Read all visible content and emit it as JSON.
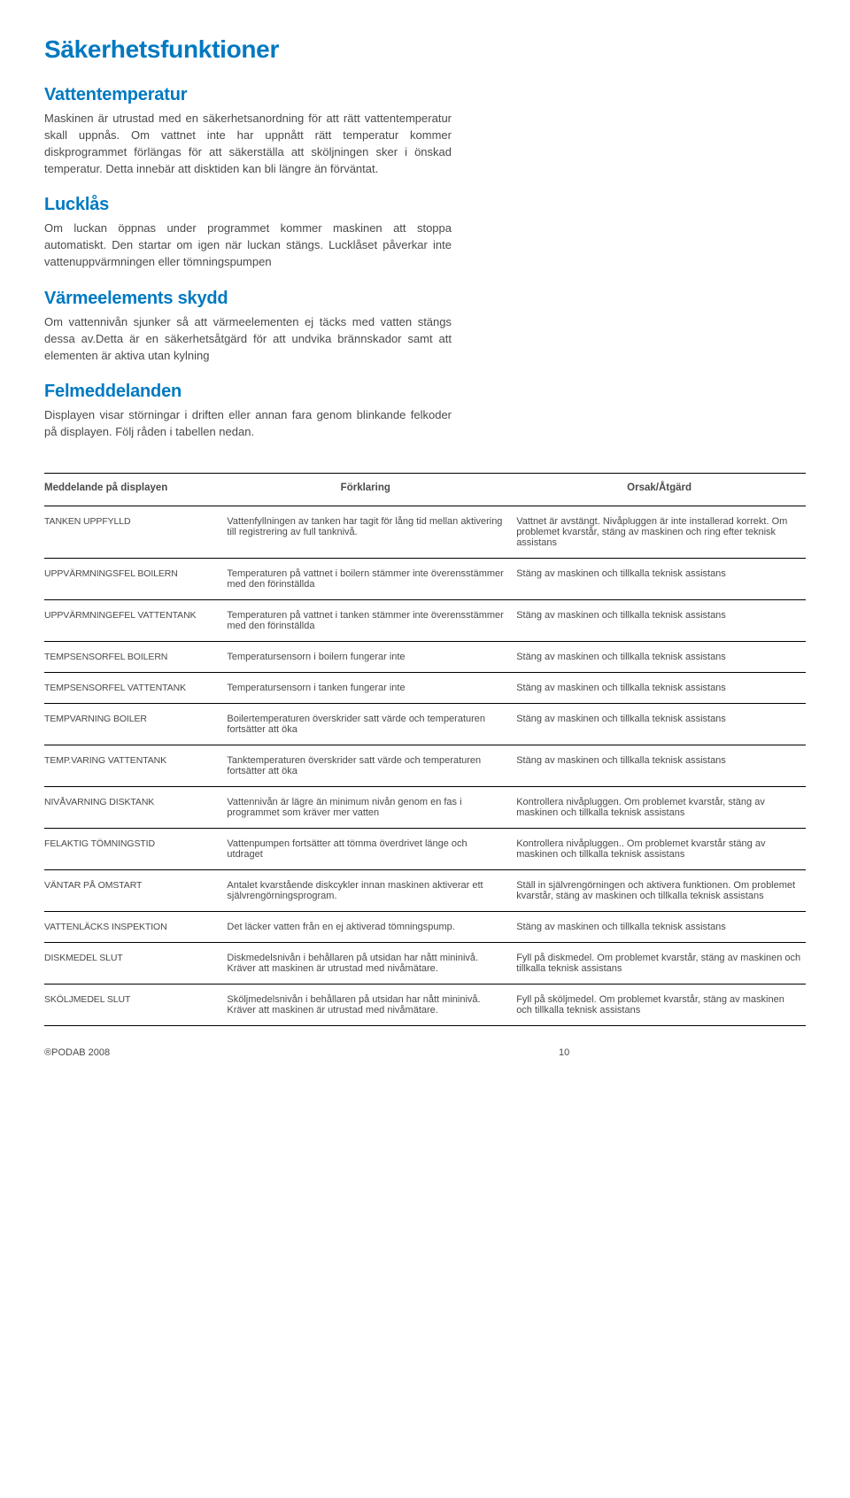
{
  "h1": "Säkerhetsfunktioner",
  "sections": [
    {
      "title": "Vattentemperatur",
      "paras": [
        "Maskinen är utrustad med en säkerhetsanordning för att rätt vattentemperatur skall uppnås. Om vattnet inte har uppnått rätt temperatur kommer diskprogrammet förlängas för att säkerställa att sköljningen sker i önskad temperatur. Detta innebär att disktiden kan bli längre än förväntat."
      ]
    },
    {
      "title": "Lucklås",
      "paras": [
        "Om luckan öppnas under programmet kommer maskinen att stoppa automatiskt. Den startar om igen när luckan stängs. Lucklåset påverkar inte vattenuppvärmningen eller tömningspumpen"
      ]
    },
    {
      "title": "Värmeelements skydd",
      "paras": [
        "Om vattennivån sjunker så att värmeelementen ej täcks med vatten stängs dessa av.Detta är en säkerhetsåtgärd för att undvika brännskador samt att elementen är aktiva utan kylning"
      ]
    },
    {
      "title": "Felmeddelanden",
      "paras": [
        "Displayen visar störningar i driften eller annan fara genom blinkande felkoder på displayen. Följ råden i tabellen  nedan."
      ]
    }
  ],
  "table": {
    "headers": [
      "Meddelande på displayen",
      "Förklaring",
      "Orsak/Åtgärd"
    ],
    "rows": [
      [
        "TANKEN UPPFYLLD",
        "Vattenfyllningen av tanken har tagit för lång tid mellan aktivering till registrering av full tanknivå.",
        "Vattnet är avstängt. Nivåpluggen är inte installerad korrekt. Om problemet kvarstår, stäng av maskinen och ring efter teknisk assistans"
      ],
      [
        "UPPVÄRMNINGSFEL BOILERN",
        "Temperaturen på vattnet i boilern stämmer inte överensstämmer med den förinställda",
        "Stäng av maskinen och tillkalla teknisk assistans"
      ],
      [
        "UPPVÄRMNINGEFEL VATTENTANK",
        "Temperaturen på vattnet i tanken stämmer inte överensstämmer med den förinställda",
        "Stäng av maskinen och tillkalla teknisk assistans"
      ],
      [
        "TEMPSENSORFEL  BOILERN",
        "Temperatursensorn i boilern fungerar inte",
        "Stäng av maskinen och tillkalla teknisk assistans"
      ],
      [
        "TEMPSENSORFEL VATTENTANK",
        "Temperatursensorn i tanken fungerar inte",
        "Stäng av maskinen och tillkalla teknisk assistans"
      ],
      [
        "TEMPVARNING BOILER",
        "Boilertemperaturen överskrider satt värde och temperaturen fortsätter att öka",
        "Stäng av maskinen och tillkalla teknisk assistans"
      ],
      [
        "TEMP.VARING VATTENTANK",
        "Tanktemperaturen överskrider satt värde och temperaturen fortsätter att öka",
        "Stäng av maskinen och tillkalla teknisk assistans"
      ],
      [
        "NIVÅVARNING DISKTANK",
        "Vattennivån är lägre än minimum nivån genom en fas i programmet som kräver mer vatten",
        "Kontrollera nivåpluggen. Om problemet kvarstår, stäng av maskinen och tillkalla teknisk assistans"
      ],
      [
        "FELAKTIG TÖMNINGSTID",
        "Vattenpumpen fortsätter att tömma överdrivet länge och utdraget",
        "Kontrollera nivåpluggen.. Om problemet kvarstår stäng av maskinen och tillkalla teknisk assistans"
      ],
      [
        "VÄNTAR PÅ OMSTART",
        "Antalet kvarstående diskcykler innan maskinen aktiverar ett självrengörningsprogram.",
        "Ställ in självrengörningen och aktivera funktionen.  Om problemet kvarstår, stäng av maskinen och tillkalla teknisk assistans"
      ],
      [
        "VATTENLÄCKS INSPEKTION",
        "Det läcker vatten från en ej aktiverad tömningspump.",
        "Stäng av maskinen och tillkalla teknisk assistans"
      ],
      [
        "DISKMEDEL SLUT",
        "Diskmedelsnivån i behållaren på utsidan har nått mininivå. Kräver att maskinen är utrustad med nivåmätare.",
        "Fyll på diskmedel. Om problemet kvarstår, stäng av maskinen och tillkalla teknisk assistans"
      ],
      [
        "SKÖLJMEDEL SLUT",
        "Sköljmedelsnivån i behållaren på utsidan har nått mininivå. Kräver att maskinen är utrustad med nivåmätare.",
        "Fyll på sköljmedel. Om problemet kvarstår, stäng av maskinen och tillkalla teknisk assistans"
      ]
    ]
  },
  "footer": {
    "left": "®PODAB 2008",
    "page": "10"
  }
}
